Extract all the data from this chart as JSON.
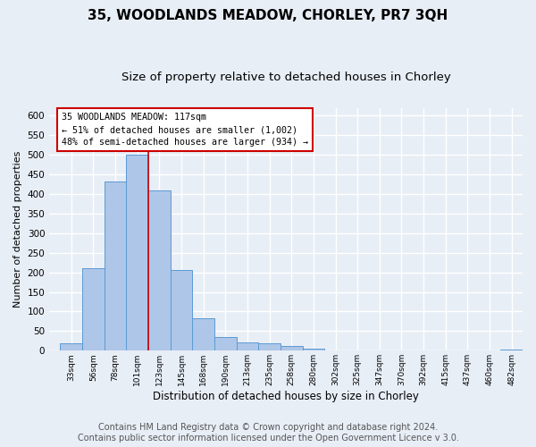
{
  "title": "35, WOODLANDS MEADOW, CHORLEY, PR7 3QH",
  "subtitle": "Size of property relative to detached houses in Chorley",
  "xlabel": "Distribution of detached houses by size in Chorley",
  "ylabel": "Number of detached properties",
  "bar_labels": [
    "33sqm",
    "56sqm",
    "78sqm",
    "101sqm",
    "123sqm",
    "145sqm",
    "168sqm",
    "190sqm",
    "213sqm",
    "235sqm",
    "258sqm",
    "280sqm",
    "302sqm",
    "325sqm",
    "347sqm",
    "370sqm",
    "392sqm",
    "415sqm",
    "437sqm",
    "460sqm",
    "482sqm"
  ],
  "bar_heights": [
    18,
    210,
    432,
    500,
    410,
    205,
    83,
    35,
    22,
    20,
    13,
    5,
    0,
    0,
    0,
    0,
    0,
    0,
    0,
    0,
    3
  ],
  "bar_color": "#aec6e8",
  "bar_edge_color": "#5b9bd5",
  "vline_x": 4,
  "vline_color": "#cc0000",
  "annotation_line1": "35 WOODLANDS MEADOW: 117sqm",
  "annotation_line2": "← 51% of detached houses are smaller (1,002)",
  "annotation_line3": "48% of semi-detached houses are larger (934) →",
  "annotation_box_color": "#ffffff",
  "annotation_box_edge_color": "#cc0000",
  "ylim": [
    0,
    620
  ],
  "yticks": [
    0,
    50,
    100,
    150,
    200,
    250,
    300,
    350,
    400,
    450,
    500,
    550,
    600
  ],
  "footer_line1": "Contains HM Land Registry data © Crown copyright and database right 2024.",
  "footer_line2": "Contains public sector information licensed under the Open Government Licence v 3.0.",
  "bg_color": "#e8eef6",
  "grid_color": "#ffffff",
  "title_fontsize": 11,
  "subtitle_fontsize": 9.5,
  "footer_fontsize": 7
}
